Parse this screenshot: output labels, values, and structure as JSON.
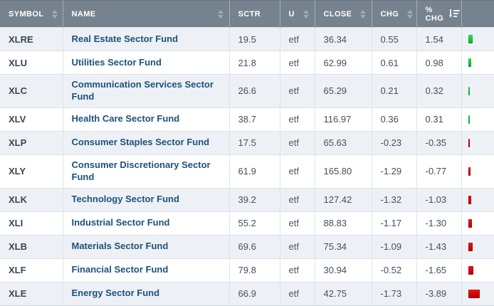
{
  "table": {
    "columns": [
      {
        "key": "symbol",
        "label": "SYMBOL",
        "sort": "both"
      },
      {
        "key": "name",
        "label": "NAME",
        "sort": "both-right"
      },
      {
        "key": "sctr",
        "label": "SCTR",
        "sort": "none"
      },
      {
        "key": "u",
        "label": "U",
        "sort": "both"
      },
      {
        "key": "close",
        "label": "CLOSE",
        "sort": "both"
      },
      {
        "key": "chg",
        "label": "CHG",
        "sort": "both"
      },
      {
        "key": "pct",
        "label": "% CHG",
        "sort": "active-desc"
      },
      {
        "key": "bar",
        "label": "",
        "sort": "none"
      }
    ],
    "rows": [
      {
        "symbol": "XLRE",
        "name": "Real Estate Sector Fund",
        "sctr": "19.5",
        "u": "etf",
        "close": "36.34",
        "chg": "0.55",
        "pct": "1.54"
      },
      {
        "symbol": "XLU",
        "name": "Utilities Sector Fund",
        "sctr": "21.8",
        "u": "etf",
        "close": "62.99",
        "chg": "0.61",
        "pct": "0.98"
      },
      {
        "symbol": "XLC",
        "name": "Communication Services Sector Fund",
        "sctr": "26.6",
        "u": "etf",
        "close": "65.29",
        "chg": "0.21",
        "pct": "0.32"
      },
      {
        "symbol": "XLV",
        "name": "Health Care Sector Fund",
        "sctr": "38.7",
        "u": "etf",
        "close": "116.97",
        "chg": "0.36",
        "pct": "0.31"
      },
      {
        "symbol": "XLP",
        "name": "Consumer Staples Sector Fund",
        "sctr": "17.5",
        "u": "etf",
        "close": "65.63",
        "chg": "-0.23",
        "pct": "-0.35"
      },
      {
        "symbol": "XLY",
        "name": "Consumer Discretionary Sector Fund",
        "sctr": "61.9",
        "u": "etf",
        "close": "165.80",
        "chg": "-1.29",
        "pct": "-0.77"
      },
      {
        "symbol": "XLK",
        "name": "Technology Sector Fund",
        "sctr": "39.2",
        "u": "etf",
        "close": "127.42",
        "chg": "-1.32",
        "pct": "-1.03"
      },
      {
        "symbol": "XLI",
        "name": "Industrial Sector Fund",
        "sctr": "55.2",
        "u": "etf",
        "close": "88.83",
        "chg": "-1.17",
        "pct": "-1.30"
      },
      {
        "symbol": "XLB",
        "name": "Materials Sector Fund",
        "sctr": "69.6",
        "u": "etf",
        "close": "75.34",
        "chg": "-1.09",
        "pct": "-1.43"
      },
      {
        "symbol": "XLF",
        "name": "Financial Sector Fund",
        "sctr": "79.8",
        "u": "etf",
        "close": "30.94",
        "chg": "-0.52",
        "pct": "-1.65"
      },
      {
        "symbol": "XLE",
        "name": "Energy Sector Fund",
        "sctr": "66.9",
        "u": "etf",
        "close": "42.75",
        "chg": "-1.73",
        "pct": "-3.89"
      }
    ]
  },
  "colors": {
    "header_bg": "#76828e",
    "header_text": "#ffffff",
    "name_link": "#1c527a",
    "row_alt_bg": "#edf1f5",
    "positive_bar": "#17c438",
    "negative_bar": "#d30404"
  }
}
